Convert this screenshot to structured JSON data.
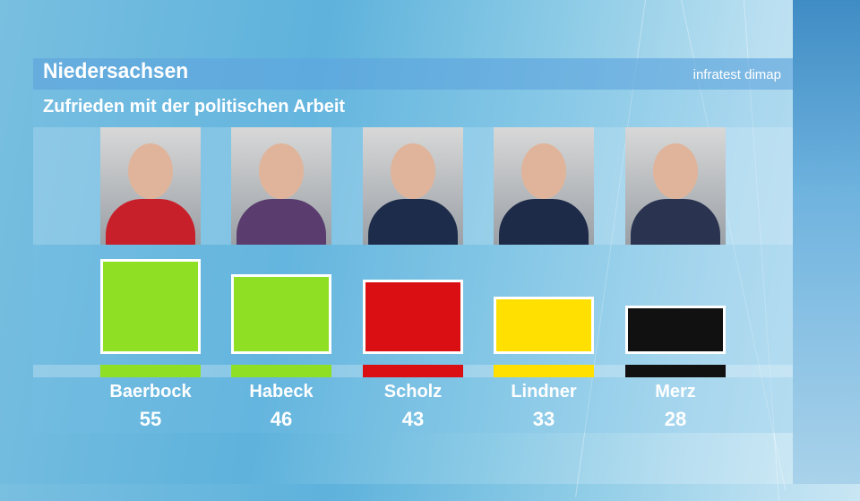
{
  "header": {
    "title": "Niedersachsen",
    "source": "infratest dimap",
    "subtitle": "Zufrieden mit der politischen Arbeit"
  },
  "chart_data": {
    "type": "bar",
    "title": "Niedersachsen",
    "subtitle": "Zufrieden mit der politischen Arbeit",
    "categories": [
      "Baerbock",
      "Habeck",
      "Scholz",
      "Lindner",
      "Merz"
    ],
    "values": [
      55,
      46,
      43,
      33,
      28
    ],
    "colors": [
      "#8fe025",
      "#8fe025",
      "#d90f14",
      "#ffe000",
      "#111111"
    ],
    "photo_colors": [
      "#c8202a",
      "#5a3d6e",
      "#1d2c4a",
      "#1d2a48",
      "#2a3350"
    ],
    "ylim": [
      0,
      55
    ]
  }
}
